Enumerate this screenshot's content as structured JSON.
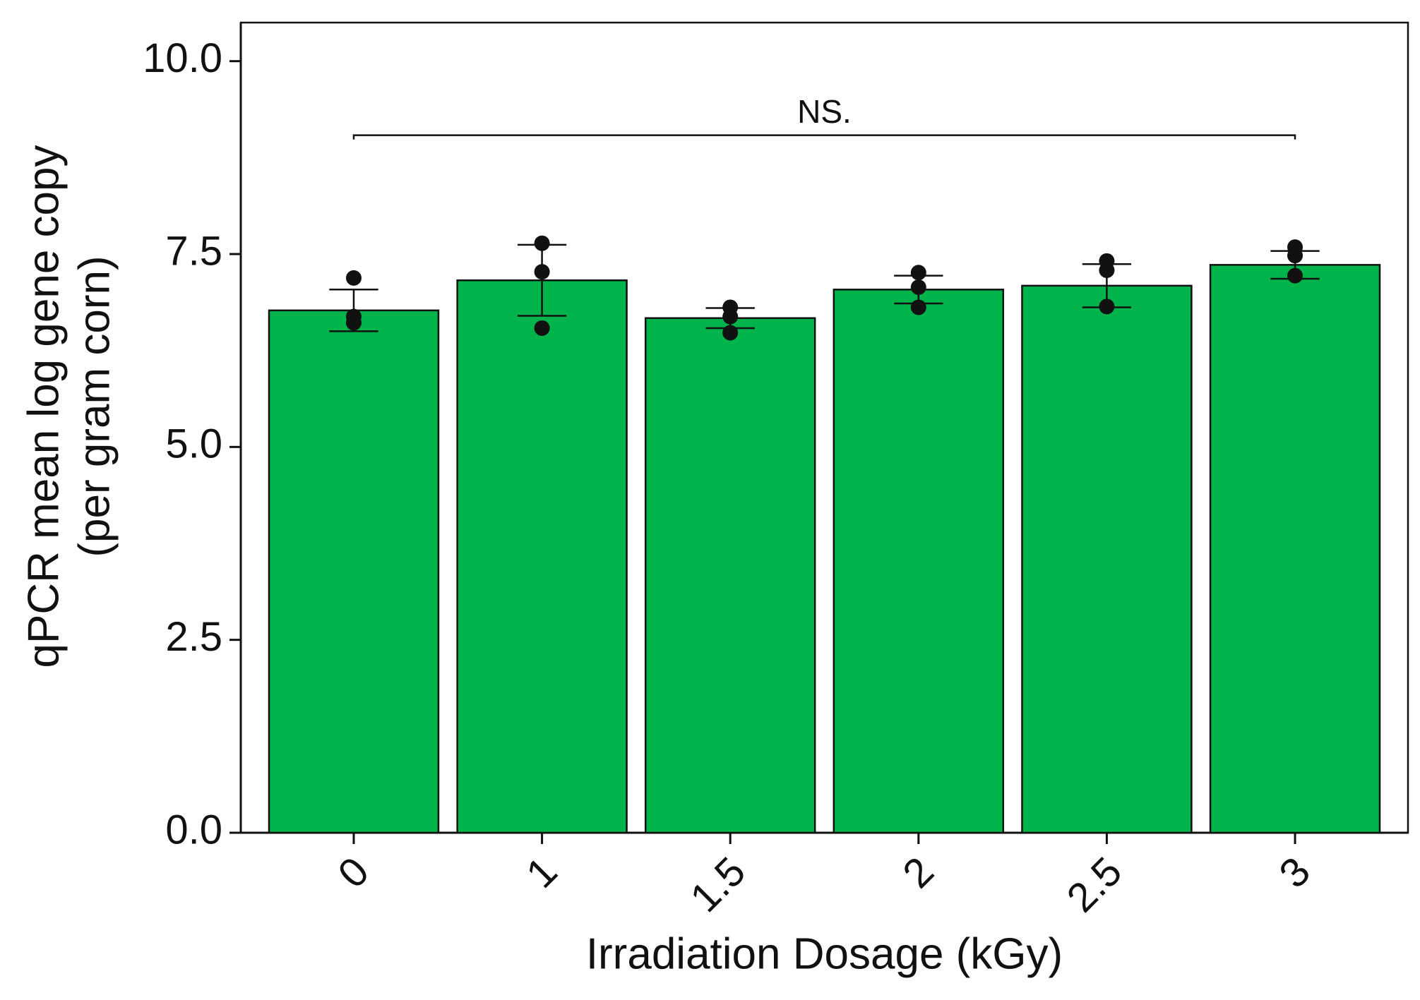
{
  "chart_data": {
    "type": "bar",
    "xlabel": "Irradiation Dosage (kGy)",
    "ylabel": [
      "qPCR mean log gene copy",
      "(per gram corn)"
    ],
    "categories": [
      "0",
      "1",
      "1.5",
      "2",
      "2.5",
      "3"
    ],
    "values": [
      6.77,
      7.16,
      6.67,
      7.04,
      7.09,
      7.36
    ],
    "errors": [
      0.27,
      0.46,
      0.13,
      0.18,
      0.28,
      0.18
    ],
    "points": [
      [
        7.19,
        6.69,
        6.61
      ],
      [
        7.64,
        7.27,
        6.54
      ],
      [
        6.81,
        6.69,
        6.48
      ],
      [
        7.26,
        7.07,
        6.81
      ],
      [
        7.41,
        7.29,
        6.82
      ],
      [
        7.59,
        7.48,
        7.22
      ]
    ],
    "color": "#00b34a",
    "ylim": [
      0,
      10.5
    ],
    "yticks": [
      {
        "value": 0,
        "label": "0.0"
      },
      2.5,
      {
        "value": 5,
        "label": "5.0"
      },
      7.5,
      {
        "value": 10,
        "label": "10.0"
      }
    ],
    "annotation": {
      "text": "NS.",
      "y": 9.04
    }
  }
}
